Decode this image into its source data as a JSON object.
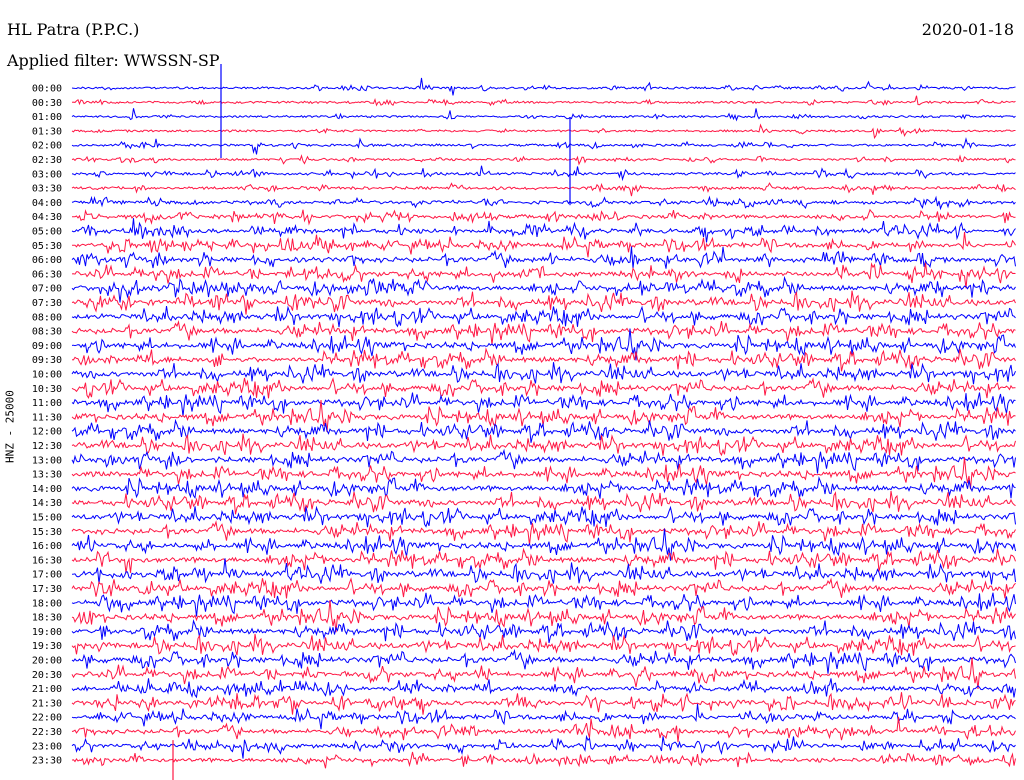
{
  "header": {
    "station": "HL Patra (P.P.C.)",
    "filter": "Applied filter: WWSSN-SP",
    "date": "2020-01-18",
    "channel_label": "HNZ - 25000"
  },
  "colors": {
    "even_trace": "#0000ff",
    "odd_trace": "#ff1744"
  },
  "chart_data": {
    "type": "line",
    "title": "HL Patra (P.P.C.)",
    "subtitle": "Applied filter: WWSSN-SP",
    "ylabel": "HNZ - 25000",
    "xlabel": "",
    "y_tick_labels": [
      "00:00",
      "00:30",
      "01:00",
      "01:30",
      "02:00",
      "02:30",
      "03:00",
      "03:30",
      "04:00",
      "04:30",
      "05:00",
      "05:30",
      "06:00",
      "06:30",
      "07:00",
      "07:30",
      "08:00",
      "08:30",
      "09:00",
      "09:30",
      "10:00",
      "10:30",
      "11:00",
      "11:30",
      "12:00",
      "12:30",
      "13:00",
      "13:30",
      "14:00",
      "14:30",
      "15:00",
      "15:30",
      "16:00",
      "16:30",
      "17:00",
      "17:30",
      "18:00",
      "18:30",
      "19:00",
      "19:30",
      "20:00",
      "20:30",
      "21:00",
      "21:30",
      "22:00",
      "22:30",
      "23:00",
      "23:30"
    ],
    "series_colors_alternating": [
      "#0000ff",
      "#ff1744"
    ],
    "trace_activity_relative": [
      0.15,
      0.15,
      0.12,
      0.15,
      0.18,
      0.18,
      0.3,
      0.35,
      0.45,
      0.6,
      0.7,
      0.8,
      0.85,
      0.9,
      0.95,
      1.0,
      1.0,
      1.0,
      1.0,
      1.0,
      1.0,
      1.0,
      1.0,
      1.0,
      1.0,
      1.0,
      1.0,
      1.0,
      1.0,
      1.0,
      1.0,
      1.0,
      1.0,
      1.0,
      1.0,
      1.0,
      1.0,
      1.0,
      1.0,
      1.0,
      1.0,
      0.95,
      0.9,
      0.85,
      0.8,
      0.75,
      0.7,
      0.65
    ],
    "grid": false
  }
}
